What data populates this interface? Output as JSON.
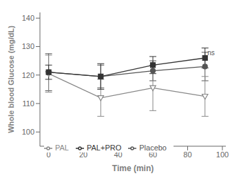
{
  "chart_data": {
    "type": "line",
    "xlabel": "Time (min)",
    "ylabel": "Whole blood Glucose (mg/dL)",
    "x": [
      0,
      30,
      60,
      90
    ],
    "series": [
      {
        "name": "Placebo",
        "color": "#555555",
        "marker": "circle",
        "line_style": "solid",
        "values": [
          121.0,
          119.5,
          121.5,
          123.0
        ],
        "error": [
          6.5,
          4.0,
          3.5,
          5.0
        ]
      },
      {
        "name": "PAL",
        "color": "#888888",
        "marker": "open_triangle_down",
        "line_style": "solid",
        "values": [
          120.5,
          112.0,
          115.5,
          112.5
        ],
        "error": [
          6.5,
          6.5,
          8.0,
          7.0
        ]
      },
      {
        "name": "PAL+PRO",
        "color": "#333333",
        "marker": "square",
        "line_style": "solid",
        "values": [
          121.0,
          119.5,
          123.5,
          126.0
        ],
        "error": [
          2.5,
          4.5,
          3.0,
          3.5
        ]
      }
    ],
    "xlim": [
      -5,
      102
    ],
    "ylim": [
      95,
      142
    ],
    "xticks": [
      0,
      20,
      40,
      60,
      80,
      100
    ],
    "yticks": [
      100,
      110,
      120,
      130,
      140
    ],
    "annotations": [
      {
        "text": "ns",
        "x": 91,
        "y": 126.5
      }
    ],
    "legend": "lower left",
    "grid": false
  }
}
